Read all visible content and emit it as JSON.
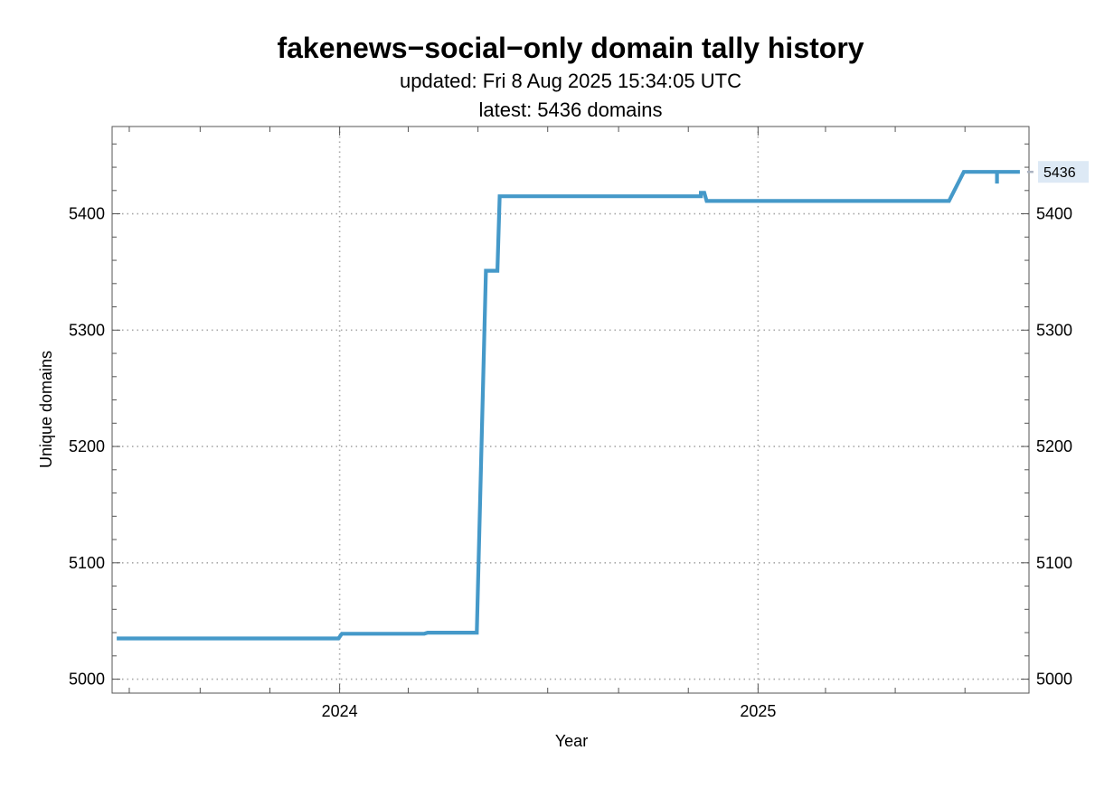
{
  "chart_data": {
    "type": "line",
    "title": "fakenews−social−only domain tally history",
    "subtitle_lines": [
      "updated: Fri 8 Aug 2025 15:34:05 UTC",
      "latest: 5436 domains"
    ],
    "xlabel": "Year",
    "ylabel": "Unique domains",
    "x_tick_labels": [
      "2024",
      "2025"
    ],
    "y_ticks": [
      5000,
      5100,
      5200,
      5300,
      5400
    ],
    "ylim": [
      4988,
      5475
    ],
    "xlim": [
      "2023-06-16",
      "2025-08-26"
    ],
    "grid": true,
    "legend": "none",
    "line_color": "#4599c9",
    "latest_marker": {
      "value": 5436,
      "label": "5436"
    },
    "series": [
      {
        "x": [
          "2023-06-20",
          "2023-12-31",
          "2024-01-03",
          "2024-03-15",
          "2024-03-18",
          "2024-04-30",
          "2024-05-08",
          "2024-05-18",
          "2024-05-20",
          "2024-11-12",
          "2024-11-12",
          "2024-11-15",
          "2024-11-17",
          "2025-06-17",
          "2025-06-30",
          "2025-07-29",
          "2025-07-29",
          "2025-07-29",
          "2025-08-18"
        ],
        "y": [
          5035,
          5035,
          5039,
          5039,
          5040,
          5040,
          5351,
          5351,
          5415,
          5415,
          5418,
          5418,
          5411,
          5411,
          5436,
          5436,
          5426,
          5436,
          5436
        ]
      }
    ]
  }
}
